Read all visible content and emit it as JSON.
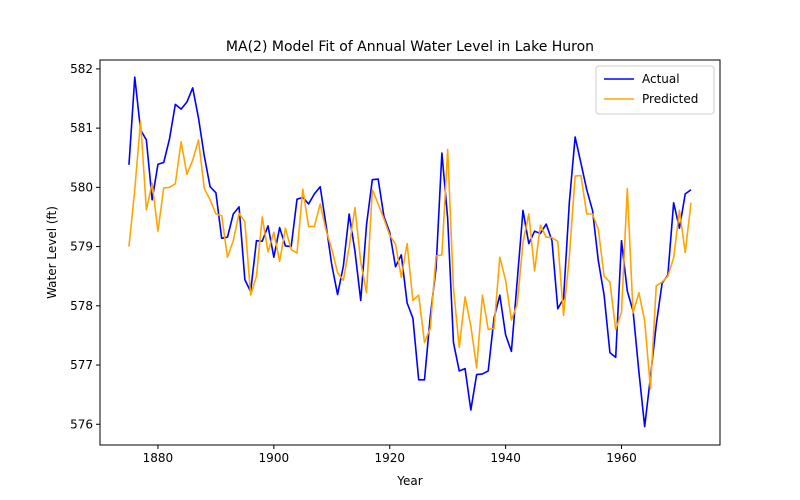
{
  "chart_data": {
    "type": "line",
    "title": "MA(2) Model Fit of Annual Water Level in Lake Huron",
    "xlabel": "Year",
    "ylabel": "Water Level (ft)",
    "xlim": [
      1870,
      1977
    ],
    "ylim": [
      575.65,
      582.15
    ],
    "xticks": [
      1880,
      1900,
      1920,
      1940,
      1960
    ],
    "yticks": [
      576,
      577,
      578,
      579,
      580,
      581,
      582
    ],
    "grid": false,
    "legend_position": "top-right",
    "x": [
      1875,
      1876,
      1877,
      1878,
      1879,
      1880,
      1881,
      1882,
      1883,
      1884,
      1885,
      1886,
      1887,
      1888,
      1889,
      1890,
      1891,
      1892,
      1893,
      1894,
      1895,
      1896,
      1897,
      1898,
      1899,
      1900,
      1901,
      1902,
      1903,
      1904,
      1905,
      1906,
      1907,
      1908,
      1909,
      1910,
      1911,
      1912,
      1913,
      1914,
      1915,
      1916,
      1917,
      1918,
      1919,
      1920,
      1921,
      1922,
      1923,
      1924,
      1925,
      1926,
      1927,
      1928,
      1929,
      1930,
      1931,
      1932,
      1933,
      1934,
      1935,
      1936,
      1937,
      1938,
      1939,
      1940,
      1941,
      1942,
      1943,
      1944,
      1945,
      1946,
      1947,
      1948,
      1949,
      1950,
      1951,
      1952,
      1953,
      1954,
      1955,
      1956,
      1957,
      1958,
      1959,
      1960,
      1961,
      1962,
      1963,
      1964,
      1965,
      1966,
      1967,
      1968,
      1969,
      1970,
      1971,
      1972
    ],
    "series": [
      {
        "name": "Actual",
        "color": "#0000ff",
        "values": [
          580.38,
          581.86,
          580.97,
          580.8,
          579.79,
          580.39,
          580.42,
          580.82,
          581.4,
          581.32,
          581.44,
          581.68,
          581.17,
          580.53,
          580.01,
          579.91,
          579.14,
          579.16,
          579.55,
          579.67,
          578.44,
          578.24,
          579.1,
          579.09,
          579.35,
          578.82,
          579.32,
          579.01,
          579,
          579.8,
          579.83,
          579.72,
          579.89,
          580.01,
          579.37,
          578.69,
          578.19,
          578.67,
          579.55,
          578.92,
          578.09,
          579.37,
          580.13,
          580.14,
          579.51,
          579.24,
          578.66,
          578.86,
          578.05,
          577.79,
          576.75,
          576.75,
          577.82,
          578.64,
          580.58,
          579.48,
          577.38,
          576.9,
          576.94,
          576.24,
          576.84,
          576.85,
          576.9,
          577.79,
          578.18,
          577.51,
          577.23,
          578.42,
          579.61,
          579.05,
          579.26,
          579.22,
          579.38,
          579.1,
          577.95,
          578.12,
          579.75,
          580.85,
          580.41,
          579.96,
          579.61,
          578.76,
          578.18,
          577.21,
          577.13,
          579.1,
          578.25,
          577.91,
          576.89,
          575.96,
          576.8,
          577.68,
          578.38,
          578.52,
          579.74,
          579.31,
          579.89,
          579.96
        ]
      },
      {
        "name": "Predicted",
        "color": "#ffa500",
        "values": [
          579.0,
          579.96,
          581.12,
          579.62,
          580.07,
          579.26,
          579.99,
          580.0,
          580.06,
          580.77,
          580.22,
          580.46,
          580.8,
          579.98,
          579.79,
          579.55,
          579.52,
          578.82,
          579.1,
          579.56,
          579.42,
          578.18,
          578.5,
          579.5,
          578.91,
          579.24,
          578.75,
          579.31,
          578.95,
          578.89,
          579.97,
          579.34,
          579.34,
          579.72,
          579.28,
          578.96,
          578.56,
          578.43,
          578.99,
          579.66,
          578.74,
          578.22,
          579.96,
          579.72,
          579.47,
          579.19,
          579.04,
          578.48,
          579.05,
          578.09,
          578.18,
          577.38,
          577.62,
          578.84,
          578.86,
          580.64,
          578.3,
          577.3,
          578.15,
          577.66,
          576.95,
          578.18,
          577.6,
          577.62,
          578.82,
          578.43,
          577.76,
          578.02,
          579.07,
          579.55,
          578.59,
          579.36,
          579.16,
          579.15,
          579.09,
          577.84,
          578.83,
          580.19,
          580.2,
          579.55,
          579.55,
          579.29,
          578.5,
          578.4,
          577.6,
          577.89,
          579.98,
          577.88,
          578.22,
          577.75,
          576.6,
          578.34,
          578.4,
          578.5,
          578.81,
          579.61,
          578.9,
          579.74
        ]
      }
    ]
  }
}
